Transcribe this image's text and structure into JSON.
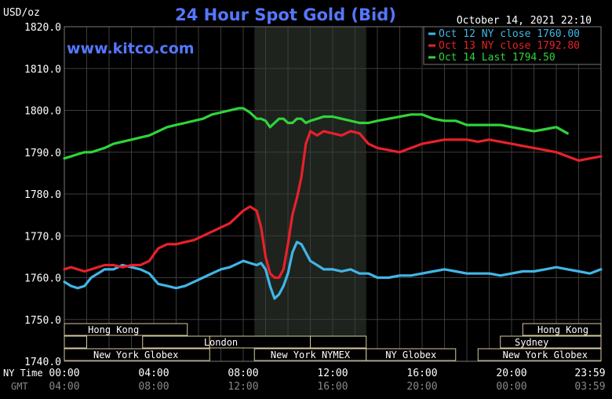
{
  "chart_data": {
    "type": "line",
    "title": "24 Hour Spot Gold (Bid)",
    "unit_label": "USD/oz",
    "watermark": "www.kitco.com",
    "timestamp": "October 14, 2021 22:10",
    "ylim": [
      1740,
      1820
    ],
    "xlim": [
      0,
      24
    ],
    "y_ticks": [
      "1820.0",
      "1810.0",
      "1800.0",
      "1790.0",
      "1780.0",
      "1770.0",
      "1760.0",
      "1750.0",
      "1740.0"
    ],
    "x_row_labels": {
      "ny": "NY Time",
      "gmt": "GMT"
    },
    "x_ticks_ny": [
      "00:00",
      "04:00",
      "08:00",
      "12:00",
      "16:00",
      "20:00",
      "23:59"
    ],
    "x_ticks_gmt": [
      "04:00",
      "08:00",
      "12:00",
      "16:00",
      "20:00",
      "00:00",
      "03:59"
    ],
    "session_shade": [
      8.5,
      13.5
    ],
    "sessions": [
      {
        "label": "Hong Kong",
        "start": 0,
        "end": 5.5,
        "row": 0,
        "text_at": 2.2
      },
      {
        "label": "Hong Kong",
        "start": 20.5,
        "end": 24,
        "row": 0,
        "text_at": 22.3
      },
      {
        "label": "",
        "start": 0,
        "end": 1,
        "row": 1
      },
      {
        "label": "",
        "start": 3.5,
        "end": 6.5,
        "row": 1
      },
      {
        "label": "London",
        "start": 6.5,
        "end": 11,
        "row": 1,
        "text_at": 7.0
      },
      {
        "label": "",
        "start": 11,
        "end": 13.5,
        "row": 1
      },
      {
        "label": "Sydney",
        "start": 19.5,
        "end": 24,
        "row": 1,
        "text_at": 20.9
      },
      {
        "label": "New York Globex",
        "start": 0,
        "end": 6.5,
        "row": 2,
        "text_at": 3.2
      },
      {
        "label": "New York NYMEX",
        "start": 8.5,
        "end": 13.5,
        "row": 2,
        "text_at": 11
      },
      {
        "label": "NY Globex",
        "start": 13.5,
        "end": 17.5,
        "row": 2,
        "text_at": 15.5
      },
      {
        "label": "New York Globex",
        "start": 18.5,
        "end": 24,
        "row": 2,
        "text_at": 21.5
      }
    ],
    "series": [
      {
        "name": "Oct 12 NY close 1760.00",
        "color": "#41b6e6",
        "x": [
          0,
          0.3,
          0.6,
          0.9,
          1.2,
          1.5,
          1.8,
          2.2,
          2.6,
          3.0,
          3.4,
          3.8,
          4.2,
          4.6,
          5.0,
          5.4,
          5.8,
          6.2,
          6.6,
          7.0,
          7.4,
          7.8,
          8.0,
          8.3,
          8.6,
          8.8,
          9.0,
          9.2,
          9.4,
          9.6,
          9.8,
          10.0,
          10.2,
          10.4,
          10.6,
          10.8,
          11.0,
          11.3,
          11.6,
          12.0,
          12.4,
          12.8,
          13.2,
          13.6,
          14.0,
          14.5,
          15.0,
          15.5,
          16.0,
          16.5,
          17.0,
          17.5,
          18.0,
          18.5,
          19.0,
          19.5,
          20.0,
          20.5,
          21.0,
          21.5,
          22.0,
          22.5,
          23.0,
          23.5,
          24.0
        ],
        "values": [
          1759,
          1758,
          1757.5,
          1758,
          1760,
          1761,
          1762,
          1762,
          1763,
          1762.5,
          1762,
          1761,
          1758.5,
          1758,
          1757.5,
          1758,
          1759,
          1760,
          1761,
          1762,
          1762.5,
          1763.5,
          1764,
          1763.5,
          1763,
          1763.5,
          1762,
          1758,
          1755,
          1756,
          1758,
          1761,
          1766,
          1768.5,
          1768,
          1766,
          1764,
          1763,
          1762,
          1762,
          1761.5,
          1762,
          1761,
          1761,
          1760,
          1760,
          1760.5,
          1760.5,
          1761,
          1761.5,
          1762,
          1761.5,
          1761,
          1761,
          1761,
          1760.5,
          1761,
          1761.5,
          1761.5,
          1762,
          1762.5,
          1762,
          1761.5,
          1761,
          1762
        ]
      },
      {
        "name": "Oct 13 NY close 1792.80",
        "color": "#e8212b",
        "x": [
          0,
          0.3,
          0.6,
          0.9,
          1.2,
          1.5,
          1.8,
          2.2,
          2.6,
          3.0,
          3.4,
          3.8,
          4.2,
          4.6,
          5.0,
          5.4,
          5.8,
          6.2,
          6.6,
          7.0,
          7.4,
          7.8,
          8.0,
          8.3,
          8.6,
          8.8,
          9.0,
          9.2,
          9.4,
          9.6,
          9.8,
          10.0,
          10.2,
          10.4,
          10.6,
          10.8,
          11.0,
          11.3,
          11.6,
          12.0,
          12.4,
          12.8,
          13.2,
          13.6,
          14.0,
          14.5,
          15.0,
          15.5,
          16.0,
          16.5,
          17.0,
          17.5,
          18.0,
          18.5,
          19.0,
          19.5,
          20.0,
          20.5,
          21.0,
          21.5,
          22.0,
          22.5,
          23.0,
          23.5,
          24.0
        ],
        "values": [
          1762,
          1762.5,
          1762,
          1761.5,
          1762,
          1762.5,
          1763,
          1763,
          1762.5,
          1763,
          1763,
          1764,
          1767,
          1768,
          1768,
          1768.5,
          1769,
          1770,
          1771,
          1772,
          1773,
          1775,
          1776,
          1777,
          1776,
          1772,
          1765,
          1761,
          1760,
          1760,
          1762,
          1768,
          1775,
          1779,
          1784,
          1792,
          1795,
          1794,
          1795,
          1794.5,
          1794,
          1795,
          1794.5,
          1792,
          1791,
          1790.5,
          1790,
          1791,
          1792,
          1792.5,
          1793,
          1793,
          1793,
          1792.5,
          1793,
          1792.5,
          1792,
          1791.5,
          1791,
          1790.5,
          1790,
          1789,
          1788,
          1788.5,
          1789
        ]
      },
      {
        "name": "Oct 14 Last 1794.50",
        "color": "#2fd43a",
        "x": [
          0,
          0.3,
          0.6,
          0.9,
          1.2,
          1.5,
          1.8,
          2.2,
          2.6,
          3.0,
          3.4,
          3.8,
          4.2,
          4.6,
          5.0,
          5.4,
          5.8,
          6.2,
          6.6,
          7.0,
          7.4,
          7.8,
          8.0,
          8.3,
          8.6,
          8.8,
          9.0,
          9.2,
          9.4,
          9.6,
          9.8,
          10.0,
          10.2,
          10.4,
          10.6,
          10.8,
          11.0,
          11.3,
          11.6,
          12.0,
          12.4,
          12.8,
          13.2,
          13.6,
          14.0,
          14.5,
          15.0,
          15.5,
          16.0,
          16.5,
          17.0,
          17.5,
          18.0,
          18.5,
          19.0,
          19.5,
          20.0,
          20.5,
          21.0,
          21.5,
          22.0,
          22.5
        ],
        "values": [
          1788.5,
          1789,
          1789.5,
          1790,
          1790,
          1790.5,
          1791,
          1792,
          1792.5,
          1793,
          1793.5,
          1794,
          1795,
          1796,
          1796.5,
          1797,
          1797.5,
          1798,
          1799,
          1799.5,
          1800,
          1800.5,
          1800.5,
          1799.5,
          1798,
          1798,
          1797.5,
          1796,
          1797,
          1798,
          1798,
          1797,
          1797,
          1798,
          1798,
          1797,
          1797.5,
          1798,
          1798.5,
          1798.5,
          1798,
          1797.5,
          1797,
          1797,
          1797.5,
          1798,
          1798.5,
          1799,
          1799,
          1798,
          1797.5,
          1797.5,
          1796.5,
          1796.5,
          1796.5,
          1796.5,
          1796,
          1795.5,
          1795,
          1795.5,
          1796,
          1794.5
        ]
      }
    ]
  }
}
